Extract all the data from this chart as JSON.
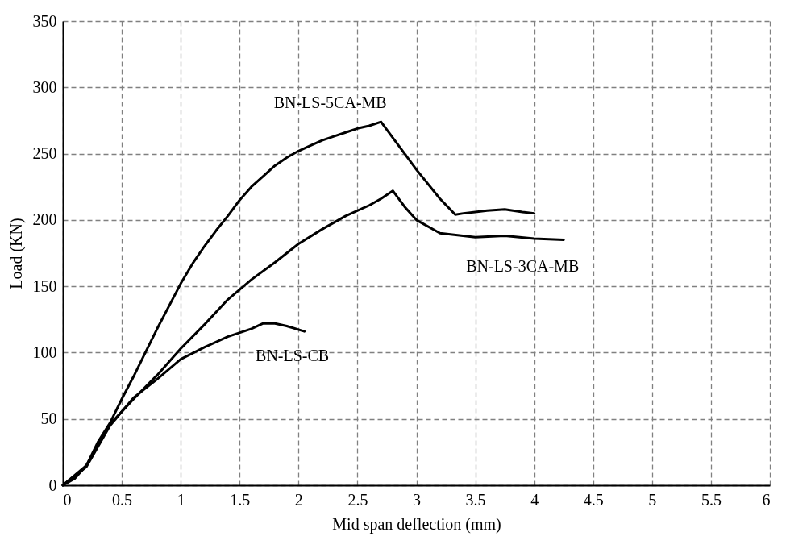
{
  "chart_data": {
    "type": "line",
    "xlabel": "Mid span deflection  (mm)",
    "ylabel": "Load (KN)",
    "xlim": [
      0,
      6
    ],
    "ylim": [
      0,
      350
    ],
    "xticks": [
      0,
      0.5,
      1,
      1.5,
      2,
      2.5,
      3,
      3.5,
      4,
      4.5,
      5,
      5.5,
      6
    ],
    "yticks": [
      0,
      50,
      100,
      150,
      200,
      250,
      300,
      350
    ],
    "grid": true,
    "legend": false,
    "marker": "none",
    "line_style": "solid",
    "series": [
      {
        "name": "BN-LS-5CA-MB",
        "color": "#000000",
        "x": [
          0,
          0.1,
          0.2,
          0.3,
          0.4,
          0.5,
          0.6,
          0.7,
          0.8,
          0.9,
          1.0,
          1.1,
          1.2,
          1.3,
          1.4,
          1.5,
          1.6,
          1.7,
          1.8,
          1.9,
          2.0,
          2.1,
          2.2,
          2.3,
          2.4,
          2.5,
          2.6,
          2.7,
          2.8,
          3.0,
          3.2,
          3.33,
          3.4,
          3.5,
          3.6,
          3.75,
          3.9,
          4.0
        ],
        "values": [
          0,
          5,
          15,
          33,
          47,
          65,
          82,
          100,
          118,
          135,
          152,
          167,
          180,
          192,
          203,
          215,
          225,
          233,
          241,
          247,
          252,
          256,
          260,
          263,
          266,
          269,
          271,
          274,
          262,
          238,
          216,
          204,
          205,
          206,
          207,
          208,
          206,
          205
        ]
      },
      {
        "name": "BN-LS-3CA-MB",
        "color": "#000000",
        "x": [
          0,
          0.2,
          0.4,
          0.6,
          0.8,
          1.0,
          1.2,
          1.4,
          1.6,
          1.8,
          2.0,
          2.2,
          2.4,
          2.6,
          2.7,
          2.8,
          2.9,
          3.0,
          3.2,
          3.5,
          3.75,
          4.0,
          4.25
        ],
        "values": [
          0,
          15,
          46,
          65,
          83,
          103,
          121,
          140,
          155,
          168,
          182,
          193,
          203,
          211,
          216,
          222,
          210,
          200,
          190,
          187,
          188,
          186,
          185
        ]
      },
      {
        "name": "BN-LS-CB",
        "color": "#000000",
        "x": [
          0,
          0.2,
          0.4,
          0.6,
          0.8,
          1.0,
          1.2,
          1.4,
          1.6,
          1.7,
          1.8,
          1.9,
          2.05
        ],
        "values": [
          0,
          14,
          45,
          66,
          80,
          95,
          104,
          112,
          118,
          122,
          122,
          120,
          116
        ]
      }
    ]
  }
}
